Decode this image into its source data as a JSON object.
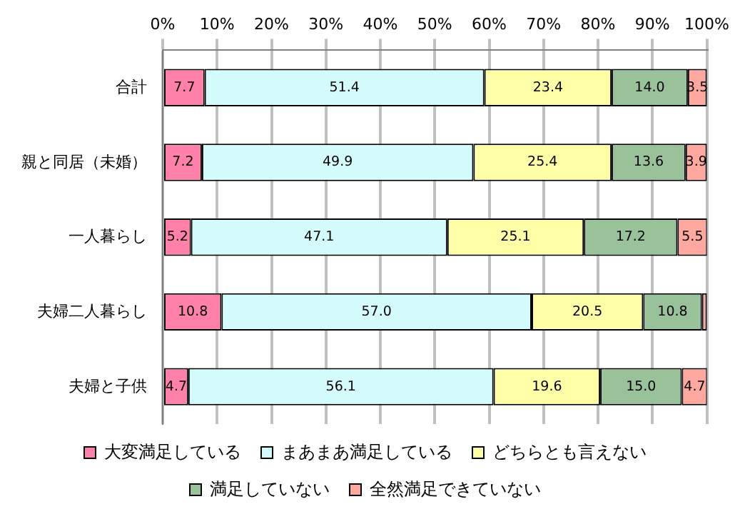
{
  "chart_data": {
    "type": "bar",
    "orientation": "horizontal",
    "stacked": true,
    "categories": [
      "合計",
      "親と同居（未婚）",
      "一人暮らし",
      "夫婦二人暮らし",
      "夫婦と子供"
    ],
    "series": [
      {
        "name": "大変満足している",
        "color": "#ff80a8",
        "values": [
          7.7,
          7.2,
          5.2,
          10.8,
          4.7
        ],
        "value_labels": [
          "7.7",
          "7.2",
          "5.2",
          "10.8",
          "4.7"
        ]
      },
      {
        "name": "まあまあ満足している",
        "color": "#d4fcfc",
        "values": [
          51.4,
          49.9,
          47.1,
          57.0,
          56.1
        ],
        "value_labels": [
          "51.4",
          "49.9",
          "47.1",
          "57.0",
          "56.1"
        ]
      },
      {
        "name": "どちらとも言えない",
        "color": "#ffffa8",
        "values": [
          23.4,
          25.4,
          25.1,
          20.5,
          19.6
        ],
        "value_labels": [
          "23.4",
          "25.4",
          "25.1",
          "20.5",
          "19.6"
        ]
      },
      {
        "name": "満足していない",
        "color": "#99c29b",
        "values": [
          14.0,
          13.6,
          17.2,
          10.8,
          15.0
        ],
        "value_labels": [
          "14.0",
          "13.6",
          "17.2",
          "10.8",
          "15.0"
        ]
      },
      {
        "name": "全然満足できていない",
        "color": "#ffa8a0",
        "values": [
          3.5,
          3.9,
          5.5,
          0.9,
          4.7
        ],
        "value_labels": [
          "3.5",
          "3.9",
          "5.5",
          null,
          "4.7"
        ]
      }
    ],
    "xlim": [
      0,
      100
    ],
    "xticks": [
      {
        "value": 0,
        "label": "0%"
      },
      {
        "value": 10,
        "label": "10%"
      },
      {
        "value": 20,
        "label": "20%"
      },
      {
        "value": 30,
        "label": "30%"
      },
      {
        "value": 40,
        "label": "40%"
      },
      {
        "value": 50,
        "label": "50%"
      },
      {
        "value": 60,
        "label": "60%"
      },
      {
        "value": 70,
        "label": "70%"
      },
      {
        "value": 80,
        "label": "80%"
      },
      {
        "value": 90,
        "label": "90%"
      },
      {
        "value": 100,
        "label": "100%"
      }
    ],
    "grid": "x",
    "legend": "bottom"
  }
}
